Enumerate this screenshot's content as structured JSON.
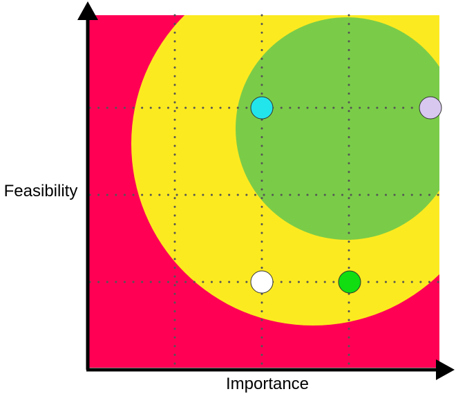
{
  "axes": {
    "x_label": "Importance",
    "y_label": "Feasibility"
  },
  "zones": [
    {
      "name": "outer",
      "color": "#FF0055"
    },
    {
      "name": "middle",
      "color": "#FCEA20"
    },
    {
      "name": "inner",
      "color": "#7ACC48"
    }
  ],
  "points": [
    {
      "name": "cyan-point",
      "color": "#22E5EC"
    },
    {
      "name": "lavender-point",
      "color": "#D8C8F0"
    },
    {
      "name": "white-point",
      "color": "#FFFFFF"
    },
    {
      "name": "green-point",
      "color": "#11DD11"
    }
  ]
}
